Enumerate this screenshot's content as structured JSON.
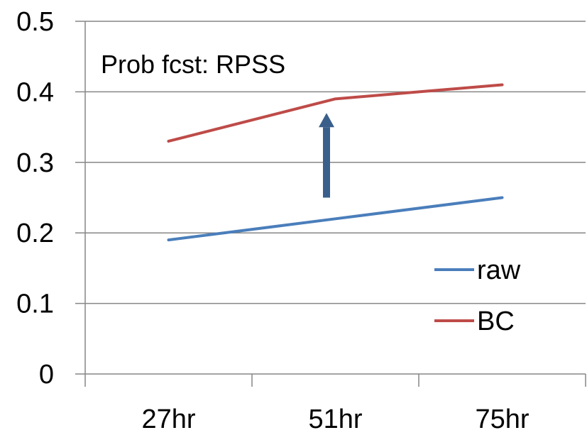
{
  "chart_data": {
    "type": "line",
    "title": "Prob fcst: RPSS",
    "xlabel": "",
    "ylabel": "",
    "categories": [
      "27hr",
      "51hr",
      "75hr"
    ],
    "ylim": [
      0,
      0.5
    ],
    "yticks": [
      "0",
      "0.1",
      "0.2",
      "0.3",
      "0.4",
      "0.5"
    ],
    "grid": true,
    "legend_position": "right",
    "series": [
      {
        "name": "raw",
        "color": "#4A7EBB",
        "values": [
          0.19,
          0.22,
          0.25
        ]
      },
      {
        "name": "BC",
        "color": "#BE4B48",
        "values": [
          0.33,
          0.39,
          0.41
        ]
      }
    ],
    "annotation": {
      "type": "arrow",
      "direction": "up",
      "color": "#3A5F8B",
      "from_value": 0.25,
      "to_value": 0.37
    }
  }
}
